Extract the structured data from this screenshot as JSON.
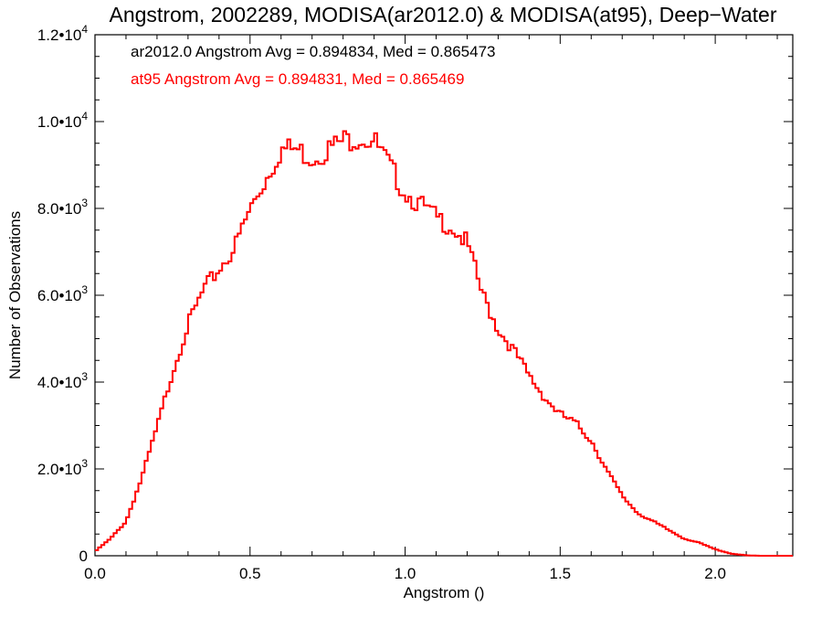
{
  "chart_data": {
    "type": "step-line",
    "title": "Angstrom, 2002289, MODISA(ar2012.0) & MODISA(at95), Deep−Water",
    "xlabel": "Angstrom ()",
    "ylabel": "Number of Observations",
    "xlim": [
      0.0,
      2.25
    ],
    "ylim": [
      0,
      12000
    ],
    "grid": false,
    "x_ticks": [
      {
        "value": 0.0,
        "label": "0.0"
      },
      {
        "value": 0.5,
        "label": "0.5"
      },
      {
        "value": 1.0,
        "label": "1.0"
      },
      {
        "value": 1.5,
        "label": "1.5"
      },
      {
        "value": 2.0,
        "label": "2.0"
      }
    ],
    "y_ticks": [
      {
        "value": 0,
        "mant": "0",
        "exp": ""
      },
      {
        "value": 2000,
        "mant": "2.0•10",
        "exp": "3"
      },
      {
        "value": 4000,
        "mant": "4.0•10",
        "exp": "3"
      },
      {
        "value": 6000,
        "mant": "6.0•10",
        "exp": "3"
      },
      {
        "value": 8000,
        "mant": "8.0•10",
        "exp": "3"
      },
      {
        "value": 10000,
        "mant": "1.0•10",
        "exp": "4"
      },
      {
        "value": 12000,
        "mant": "1.2•10",
        "exp": "4"
      }
    ],
    "legend": [
      {
        "text": "ar2012.0 Angstrom Avg = 0.894834, Med = 0.865473",
        "color": "#000000"
      },
      {
        "text": "at95 Angstrom Avg = 0.894831, Med = 0.865469",
        "color": "#ff0000"
      }
    ],
    "series": [
      {
        "color": "#ff0000",
        "x": [
          0.0,
          0.05,
          0.1,
          0.15,
          0.2,
          0.25,
          0.3,
          0.35,
          0.4,
          0.45,
          0.5,
          0.55,
          0.6,
          0.65,
          0.7,
          0.75,
          0.8,
          0.85,
          0.9,
          0.95,
          1.0,
          1.05,
          1.1,
          1.15,
          1.2,
          1.25,
          1.3,
          1.35,
          1.4,
          1.45,
          1.5,
          1.55,
          1.6,
          1.65,
          1.7,
          1.75,
          1.8,
          1.85,
          1.9,
          1.95,
          2.0,
          2.05,
          2.1,
          2.15,
          2.2,
          2.25
        ],
        "y": [
          100,
          400,
          800,
          1800,
          3000,
          4300,
          5400,
          6200,
          6700,
          7200,
          8100,
          8800,
          9500,
          9500,
          9300,
          9500,
          9700,
          9800,
          9700,
          9100,
          8500,
          8200,
          7900,
          7700,
          7300,
          6100,
          5300,
          4800,
          4200,
          3700,
          3300,
          3100,
          2700,
          2000,
          1400,
          1000,
          800,
          600,
          400,
          300,
          150,
          50,
          10,
          0,
          0,
          0
        ]
      }
    ]
  }
}
